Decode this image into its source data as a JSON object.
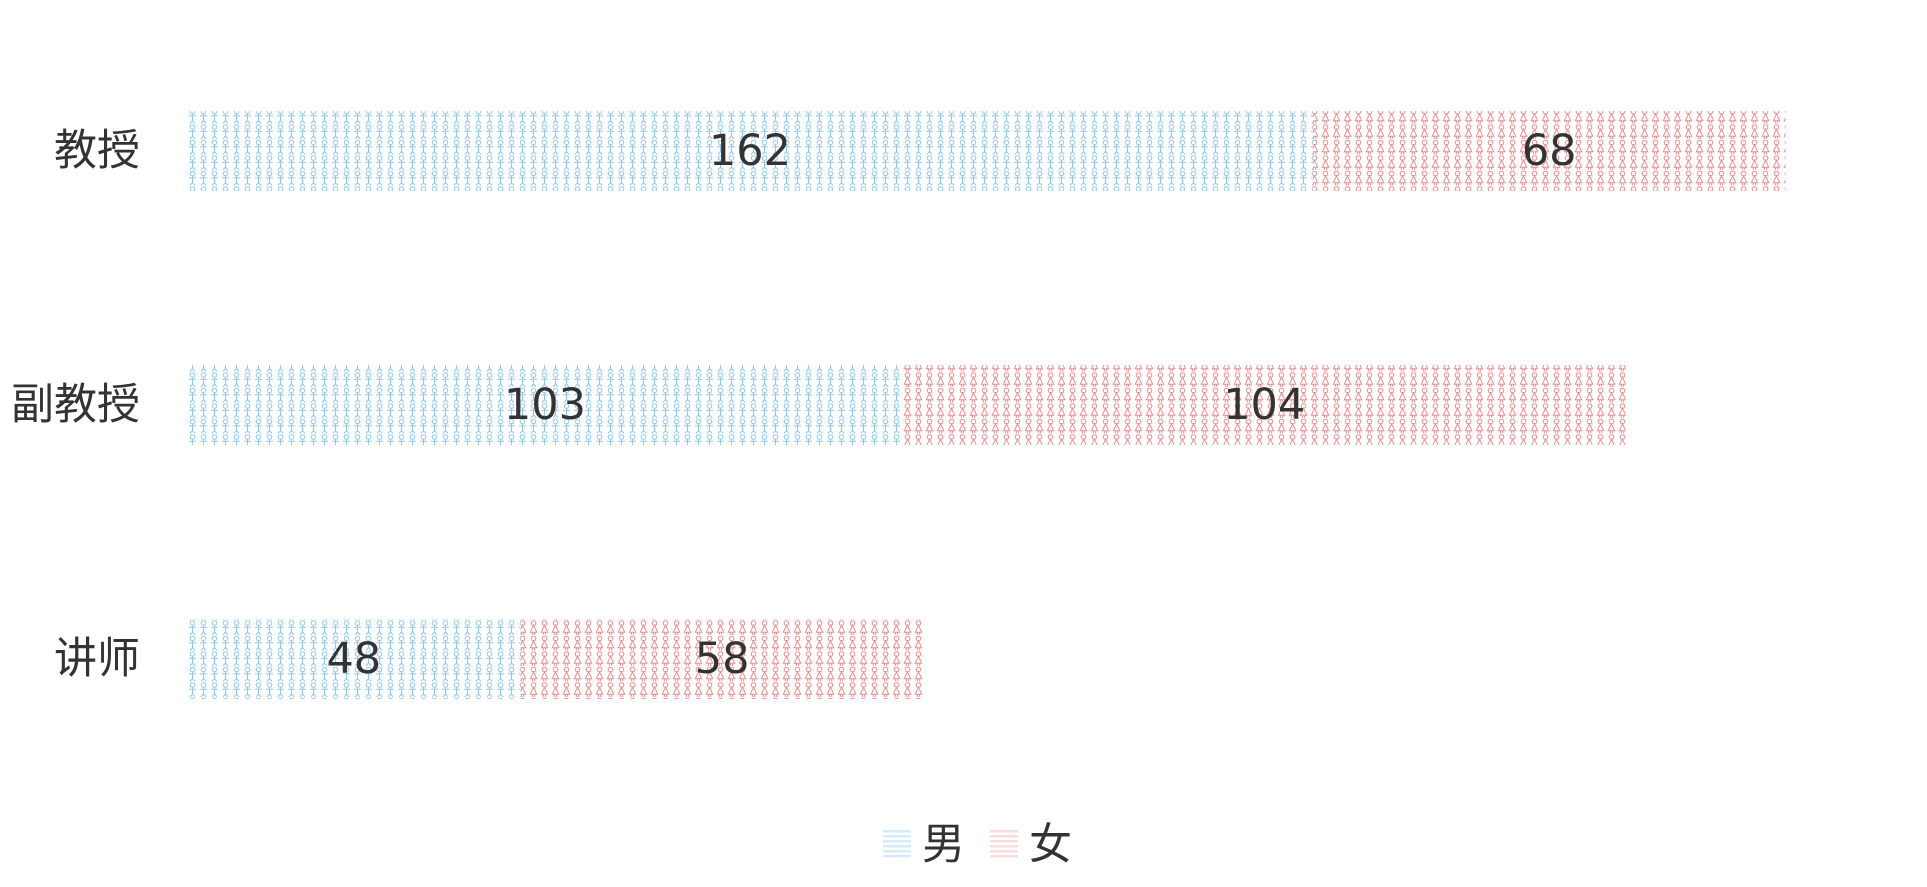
{
  "chart_data": {
    "type": "bar",
    "orientation": "horizontal",
    "stacked": true,
    "categories": [
      "教授",
      "副教授",
      "讲师"
    ],
    "series": [
      {
        "name": "男",
        "values": [
          162,
          103,
          48
        ],
        "color": "#8ec8f0",
        "icon": "male-figure-icon"
      },
      {
        "name": "女",
        "values": [
          68,
          104,
          58
        ],
        "color": "#ef8b8b",
        "icon": "female-figure-icon"
      }
    ],
    "xlim": [
      0,
      230
    ],
    "grid": false,
    "legend_position": "bottom-center",
    "title": "",
    "xlabel": "",
    "ylabel": ""
  }
}
